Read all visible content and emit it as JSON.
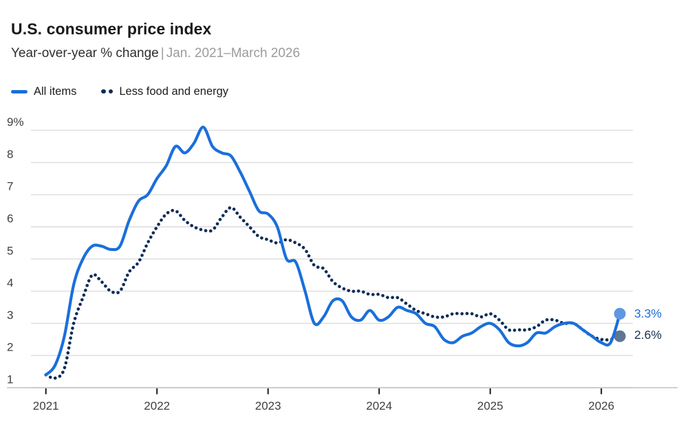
{
  "header": {
    "title": "U.S. consumer price index",
    "subtitle_main": "Year-over-year % change",
    "subtitle_separator": "|",
    "subtitle_range": "Jan. 2021–March 2026"
  },
  "colors": {
    "all_items_blue": "#1a6fdb",
    "core_navy": "#0f2c58",
    "all_items_end_dot": "#5f97e3",
    "core_end_dot": "#5f7594",
    "end_label_blue": "#1a6fdb",
    "end_label_navy": "#1b3250",
    "gridline": "#dcdcdc",
    "axis_line": "#c2c2c2",
    "tick": "#1a1a1a",
    "axis_text": "#3f3f3f"
  },
  "chart_data": {
    "type": "line",
    "title": "U.S. consumer price index",
    "subtitle": "Year-over-year % change | Jan. 2021–March 2026",
    "x_frequency": "monthly",
    "x_start": "2021-01",
    "x_end": "2026-03",
    "x_tick_labels": [
      "2021",
      "2022",
      "2023",
      "2024",
      "2025",
      "2026"
    ],
    "y_tick_labels": [
      "9%",
      "8",
      "7",
      "6",
      "5",
      "4",
      "3",
      "2",
      "1"
    ],
    "y_tick_values": [
      9,
      8,
      7,
      6,
      5,
      4,
      3,
      2,
      1
    ],
    "ylim": [
      1,
      9
    ],
    "grid": true,
    "legend_position": "top-left",
    "series": [
      {
        "name": "All items",
        "style": "solid",
        "end_label": "3.3%",
        "values": [
          1.4,
          1.7,
          2.6,
          4.2,
          5.0,
          5.4,
          5.4,
          5.3,
          5.4,
          6.2,
          6.8,
          7.0,
          7.5,
          7.9,
          8.5,
          8.3,
          8.6,
          9.1,
          8.5,
          8.3,
          8.2,
          7.7,
          7.1,
          6.5,
          6.4,
          6.0,
          5.0,
          4.9,
          4.0,
          3.0,
          3.2,
          3.7,
          3.7,
          3.2,
          3.1,
          3.4,
          3.1,
          3.2,
          3.5,
          3.4,
          3.3,
          3.0,
          2.9,
          2.5,
          2.4,
          2.6,
          2.7,
          2.9,
          3.0,
          2.8,
          2.4,
          2.3,
          2.4,
          2.7,
          2.7,
          2.9,
          3.0,
          3.0,
          2.8,
          2.6,
          2.4,
          2.4,
          3.3
        ]
      },
      {
        "name": "Less food and energy",
        "style": "dotted",
        "end_label": "2.6%",
        "values": [
          1.4,
          1.3,
          1.6,
          3.0,
          3.8,
          4.5,
          4.3,
          4.0,
          4.0,
          4.6,
          4.9,
          5.5,
          6.0,
          6.4,
          6.5,
          6.2,
          6.0,
          5.9,
          5.9,
          6.3,
          6.6,
          6.3,
          6.0,
          5.7,
          5.6,
          5.5,
          5.6,
          5.5,
          5.3,
          4.8,
          4.7,
          4.3,
          4.1,
          4.0,
          4.0,
          3.9,
          3.9,
          3.8,
          3.8,
          3.6,
          3.4,
          3.3,
          3.2,
          3.2,
          3.3,
          3.3,
          3.3,
          3.2,
          3.3,
          3.1,
          2.8,
          2.8,
          2.8,
          2.9,
          3.1,
          3.1,
          3.0,
          3.0,
          2.8,
          2.6,
          2.5,
          2.5,
          2.6
        ]
      }
    ]
  }
}
